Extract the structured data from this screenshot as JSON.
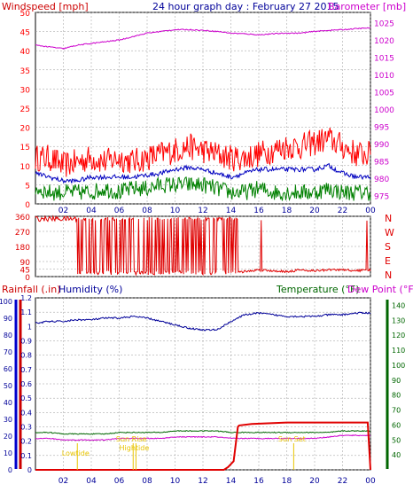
{
  "title": "24 hour graph day : February 27 2015",
  "colors": {
    "wind_gust": "#ff0000",
    "wind_avg": "#0000c0",
    "wind_low": "#008000",
    "barometer": "#cc00cc",
    "direction": "#e00000",
    "rain": "#e00000",
    "humidity": "#000099",
    "temperature": "#006600",
    "dewpoint": "#cc00cc",
    "astro": "#e8c400",
    "grid": "#999999"
  },
  "chart_data": [
    {
      "type": "line",
      "name": "wind-barometer",
      "ylabel_left": "Windspeed [mph]",
      "ylabel_right": "Barometer [mb]",
      "xticks": [
        "02",
        "04",
        "06",
        "08",
        "10",
        "12",
        "14",
        "16",
        "18",
        "20",
        "22",
        "00"
      ],
      "yticks_left": [
        0,
        5,
        10,
        15,
        20,
        25,
        30,
        35,
        40,
        45,
        50
      ],
      "yticks_right": [
        975,
        980,
        985,
        990,
        995,
        1000,
        1005,
        1010,
        1015,
        1020,
        1025
      ],
      "ylim_left": [
        0,
        50
      ],
      "ylim_right": [
        972.5,
        1028
      ],
      "x_hours": [
        0,
        1,
        2,
        3,
        4,
        5,
        6,
        7,
        8,
        9,
        10,
        11,
        12,
        13,
        14,
        15,
        16,
        17,
        18,
        19,
        20,
        21,
        22,
        23,
        24
      ],
      "gust": [
        12,
        12,
        10,
        11,
        12,
        11,
        12,
        11,
        12,
        13,
        14,
        15,
        14,
        13,
        12,
        12,
        13,
        14,
        15,
        15,
        16,
        17,
        15,
        13,
        13
      ],
      "average": [
        8,
        7,
        6,
        6,
        7,
        7,
        7,
        7,
        7.5,
        8,
        9,
        9.5,
        9,
        8,
        7,
        8,
        9,
        9,
        9,
        9,
        9,
        10,
        8,
        7,
        7
      ],
      "low": [
        4,
        3,
        3,
        3,
        3,
        4,
        3,
        4,
        4,
        5,
        5,
        5,
        5,
        4,
        3,
        3,
        4,
        3,
        3,
        3,
        3,
        4,
        3,
        3,
        3
      ],
      "barometer": [
        1018.5,
        1018,
        1017.5,
        1018.5,
        1019,
        1019.5,
        1020,
        1021,
        1022,
        1022.5,
        1023,
        1023,
        1022.8,
        1022.5,
        1022,
        1021.8,
        1021.5,
        1021.8,
        1022,
        1022,
        1022.5,
        1022.8,
        1023,
        1023.3,
        1023.5
      ]
    },
    {
      "type": "scatter",
      "name": "wind-direction",
      "yticks_left": [
        0,
        45,
        90,
        135,
        180,
        225,
        270,
        315,
        360
      ],
      "compass": [
        "N",
        "W",
        "S",
        "E",
        "N"
      ],
      "ylim": [
        0,
        360
      ],
      "xticks": [
        "02",
        "04",
        "06",
        "08",
        "10",
        "12",
        "14",
        "16",
        "18",
        "20",
        "22",
        "00"
      ],
      "x_hours": [
        0,
        1,
        2,
        3,
        4,
        5,
        6,
        7,
        8,
        9,
        10,
        11,
        12,
        13,
        14,
        15,
        16,
        17,
        18,
        19,
        20,
        21,
        22,
        23,
        24
      ],
      "direction": [
        345,
        345,
        345,
        345,
        20,
        345,
        20,
        345,
        20,
        345,
        20,
        345,
        20,
        345,
        20,
        30,
        40,
        35,
        30,
        40,
        35,
        40,
        40,
        35,
        40
      ]
    },
    {
      "type": "line",
      "name": "rain-humidity-temperature",
      "ylabel_rain": "Rainfall (.in)",
      "ylabel_humidity": "Humidity (%)",
      "ylabel_temperature": "Temperature (°F)",
      "ylabel_dewpoint": "Dew Point (°F)",
      "xticks": [
        "02",
        "04",
        "06",
        "08",
        "10",
        "12",
        "14",
        "16",
        "18",
        "20",
        "22",
        "00"
      ],
      "yticks_humidity": [
        0,
        10,
        20,
        30,
        40,
        50,
        60,
        70,
        80,
        90,
        100
      ],
      "yticks_rain": [
        0,
        0.1,
        0.2,
        0.3,
        0.4,
        0.5,
        0.6,
        0.7,
        0.8,
        0.9,
        1,
        1.1,
        1.2
      ],
      "yticks_temp": [
        40,
        50,
        60,
        70,
        80,
        90,
        100,
        110,
        120,
        130,
        140
      ],
      "ylim_rain": [
        0,
        1.2
      ],
      "ylim_humidity": [
        0,
        102
      ],
      "ylim_temp": [
        30,
        145
      ],
      "x_hours": [
        0,
        1,
        2,
        3,
        4,
        5,
        6,
        7,
        8,
        9,
        10,
        11,
        12,
        13,
        14,
        15,
        16,
        17,
        18,
        19,
        20,
        21,
        22,
        23,
        24
      ],
      "humidity": [
        87,
        88,
        88,
        89,
        89,
        90,
        90,
        91,
        90,
        88,
        86,
        84,
        83,
        83,
        88,
        92,
        93,
        92,
        91,
        91,
        91,
        92,
        92,
        93,
        93
      ],
      "temperature": [
        55,
        55,
        54,
        54,
        54,
        54,
        55,
        55,
        55,
        55,
        56,
        56,
        56,
        56,
        55,
        55,
        55,
        55,
        55,
        55,
        55,
        55,
        56,
        56,
        56
      ],
      "dewpoint": [
        51,
        51,
        50,
        50,
        50,
        50,
        51,
        51,
        51,
        51,
        52,
        52,
        52,
        52,
        51,
        51,
        51,
        51,
        51,
        51,
        51,
        52,
        53,
        53,
        53
      ],
      "rain_x": [
        0,
        13.5,
        13.8,
        14.2,
        14.5,
        14.6,
        15.5,
        18,
        20,
        23.8,
        24
      ],
      "rain": [
        0,
        0,
        0.02,
        0.06,
        0.3,
        0.31,
        0.32,
        0.33,
        0.33,
        0.33,
        0
      ],
      "annotations": [
        {
          "text": "Lowtide",
          "x_hour": 3.0
        },
        {
          "text": "Sun Rise",
          "x_hour": 7.0
        },
        {
          "text": "Hightide",
          "x_hour": 7.2
        },
        {
          "text": "Sun Set",
          "x_hour": 18.5
        }
      ]
    }
  ]
}
